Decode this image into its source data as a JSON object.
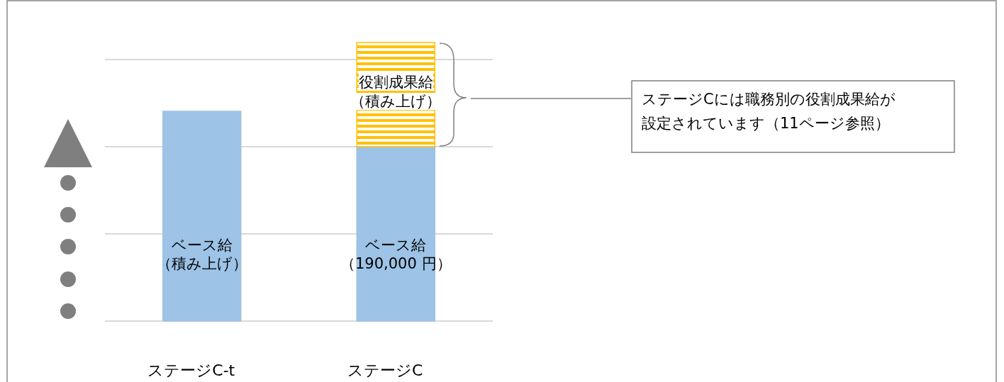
{
  "chart_data": {
    "type": "bar",
    "stacked": true,
    "categories": [
      "ステージC-t",
      "ステージC"
    ],
    "yticks": [
      {
        "value": 0,
        "label": null
      },
      {
        "value": 95000,
        "label": null
      },
      {
        "value": 190000,
        "label": null
      },
      {
        "value": 285000,
        "label": null
      }
    ],
    "tick_labels": "x",
    "grid": "y",
    "series": [
      {
        "color": "#9dc3e6",
        "values": [
          228600,
          190000
        ],
        "value_labels": [
          "ベース給（積み上げ）",
          "ベース給（190,000 円）"
        ]
      },
      {
        "color": "#ffc000",
        "values": [
          null,
          113500
        ],
        "value_labels": [
          null,
          "役割成果給（積み上げ）"
        ]
      }
    ],
    "annotations": [
      "ステージCには職務別の役割成果給が設定されています（11ページ参照）"
    ]
  }
}
